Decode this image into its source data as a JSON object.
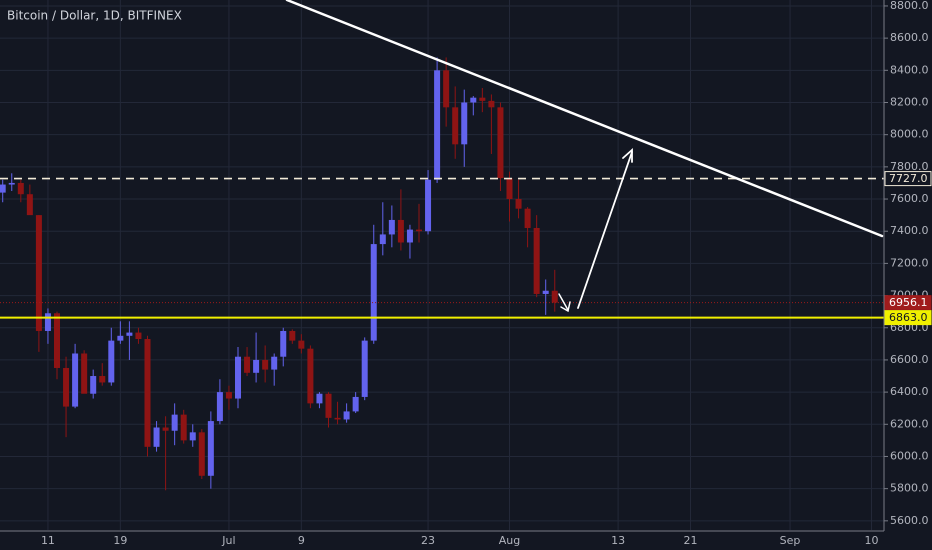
{
  "chart_data": {
    "type": "candlestick",
    "title": "Bitcoin / Dollar, 1D, BITFINEX",
    "up_color": "#6363ee",
    "down_color": "#8f1414",
    "grid": true,
    "categories": [
      null,
      null,
      null,
      null,
      null,
      "11",
      null,
      null,
      null,
      null,
      null,
      null,
      null,
      "19",
      null,
      null,
      null,
      null,
      null,
      null,
      null,
      null,
      null,
      null,
      null,
      "Jul",
      null,
      null,
      null,
      null,
      null,
      null,
      null,
      "9",
      null,
      null,
      null,
      null,
      null,
      null,
      null,
      null,
      null,
      null,
      null,
      null,
      null,
      "23",
      null,
      null,
      null,
      null,
      null,
      null,
      null,
      null,
      "Aug",
      null,
      null,
      null,
      null,
      null,
      null,
      null,
      null,
      null,
      null,
      null,
      "13",
      null,
      null,
      null,
      null,
      null,
      null,
      null,
      "21",
      null,
      null,
      null,
      null,
      null,
      null,
      null,
      null,
      null,
      null,
      "Sep",
      null,
      null,
      null,
      null,
      null,
      null,
      null,
      null,
      "10",
      null
    ],
    "open": [
      7640,
      7690,
      7700,
      7630,
      7500,
      6780,
      6890,
      6550,
      6310,
      6640,
      6390,
      6500,
      6460,
      6720,
      6750,
      6770,
      6730,
      6060,
      6180,
      6160,
      6260,
      6100,
      6150,
      5880,
      6220,
      6400,
      6360,
      6620,
      6520,
      6600,
      6540,
      6620,
      6780,
      6720,
      6670,
      6330,
      6390,
      6240,
      6230,
      6280,
      6370,
      6720,
      7320,
      7380,
      7470,
      7330,
      7410,
      7400,
      7720,
      8400,
      8170,
      7940,
      8200,
      8230,
      8210,
      8170,
      7730,
      7600,
      7540,
      7420,
      7010,
      7030,
      null,
      null,
      null,
      null,
      null,
      null,
      null,
      null,
      null,
      null,
      null,
      null,
      null,
      null,
      null,
      null,
      null,
      null,
      null,
      null,
      null,
      null,
      null,
      null,
      null,
      null,
      null,
      null,
      null,
      null,
      null,
      null,
      null,
      null,
      null,
      null
    ],
    "high": [
      7720,
      7760,
      7720,
      7690,
      7500,
      6920,
      6900,
      6620,
      6700,
      6660,
      6540,
      6580,
      6800,
      6840,
      6840,
      6800,
      6750,
      6220,
      6250,
      6330,
      6290,
      6200,
      6170,
      6280,
      6480,
      6440,
      6680,
      6680,
      6770,
      6690,
      6640,
      6800,
      6790,
      6760,
      6690,
      6400,
      6400,
      6340,
      6330,
      6400,
      6740,
      7440,
      7580,
      7560,
      7660,
      7440,
      7570,
      7780,
      8480,
      8480,
      8300,
      8280,
      8240,
      8290,
      8250,
      8200,
      7770,
      7720,
      7550,
      7500,
      7100,
      7160,
      null,
      null,
      null,
      null,
      null,
      null,
      null,
      null,
      null,
      null,
      null,
      null,
      null,
      null,
      null,
      null,
      null,
      null,
      null,
      null,
      null,
      null,
      null,
      null,
      null,
      null,
      null,
      null,
      null,
      null,
      null,
      null,
      null,
      null,
      null,
      null
    ],
    "low": [
      7580,
      7650,
      7580,
      7520,
      6650,
      6700,
      6480,
      6120,
      6300,
      6400,
      6360,
      6440,
      6440,
      6700,
      6600,
      6700,
      6000,
      6030,
      5790,
      6070,
      6080,
      6060,
      5860,
      5800,
      6200,
      6290,
      6300,
      6500,
      6460,
      6460,
      6440,
      6560,
      6700,
      6640,
      6300,
      6300,
      6180,
      6200,
      6210,
      6270,
      6350,
      6700,
      7250,
      7300,
      7280,
      7230,
      7330,
      7380,
      7700,
      8050,
      7850,
      7800,
      8120,
      8140,
      7880,
      7650,
      7460,
      7480,
      7300,
      6990,
      6880,
      6900,
      null,
      null,
      null,
      null,
      null,
      null,
      null,
      null,
      null,
      null,
      null,
      null,
      null,
      null,
      null,
      null,
      null,
      null,
      null,
      null,
      null,
      null,
      null,
      null,
      null,
      null,
      null,
      null,
      null,
      null,
      null,
      null,
      null,
      null,
      null,
      null
    ],
    "close": [
      7690,
      7700,
      7630,
      7500,
      6780,
      6890,
      6550,
      6310,
      6640,
      6390,
      6500,
      6460,
      6720,
      6750,
      6770,
      6730,
      6060,
      6180,
      6160,
      6260,
      6100,
      6150,
      5880,
      6220,
      6400,
      6360,
      6620,
      6520,
      6600,
      6540,
      6620,
      6780,
      6720,
      6670,
      6330,
      6390,
      6240,
      6230,
      6280,
      6370,
      6720,
      7320,
      7380,
      7470,
      7330,
      7410,
      7400,
      7720,
      8400,
      8170,
      7940,
      8200,
      8230,
      8210,
      8170,
      7730,
      7600,
      7540,
      7420,
      7010,
      7030,
      6956.1,
      null,
      null,
      null,
      null,
      null,
      null,
      null,
      null,
      null,
      null,
      null,
      null,
      null,
      null,
      null,
      null,
      null,
      null,
      null,
      null,
      null,
      null,
      null,
      null,
      null,
      null,
      null,
      null,
      null,
      null,
      null,
      null,
      null,
      null,
      null,
      null
    ],
    "ylim": [
      5543,
      8837
    ],
    "yticks": [
      {
        "value": 5600,
        "label": "5600.0"
      },
      {
        "value": 5800,
        "label": "5800.0"
      },
      {
        "value": 6000,
        "label": "6000.0"
      },
      {
        "value": 6200,
        "label": "6200.0"
      },
      {
        "value": 6400,
        "label": "6400.0"
      },
      {
        "value": 6600,
        "label": "6600.0"
      },
      {
        "value": 6800,
        "label": "6800.0"
      },
      {
        "value": 7000,
        "label": "7000.0"
      },
      {
        "value": 7200,
        "label": "7200.0"
      },
      {
        "value": 7400,
        "label": "7400.0"
      },
      {
        "value": 7600,
        "label": "7600.0"
      },
      {
        "value": 7800,
        "label": "7800.0"
      },
      {
        "value": 8000,
        "label": "8000.0"
      },
      {
        "value": 8200,
        "label": "8200.0"
      },
      {
        "value": 8400,
        "label": "8400.0"
      },
      {
        "value": 8600,
        "label": "8600.0"
      },
      {
        "value": 8800,
        "label": "8800.0"
      }
    ],
    "price_lines": [
      {
        "value": 7727,
        "label": "7727.0",
        "color": "#f2ead8",
        "style": "dashed",
        "box": "#131722",
        "text_color": "#f2ead8"
      },
      {
        "value": 6956.1,
        "label": "6956.1",
        "color": "#9c1a1a",
        "style": "dotted",
        "box": "#a01c1c",
        "text_color": "#ffffff"
      },
      {
        "value": 6863,
        "label": "6863.0",
        "color": "#f0f000",
        "style": "solid",
        "box": "#f0f000",
        "text_color": "#131722"
      }
    ]
  }
}
